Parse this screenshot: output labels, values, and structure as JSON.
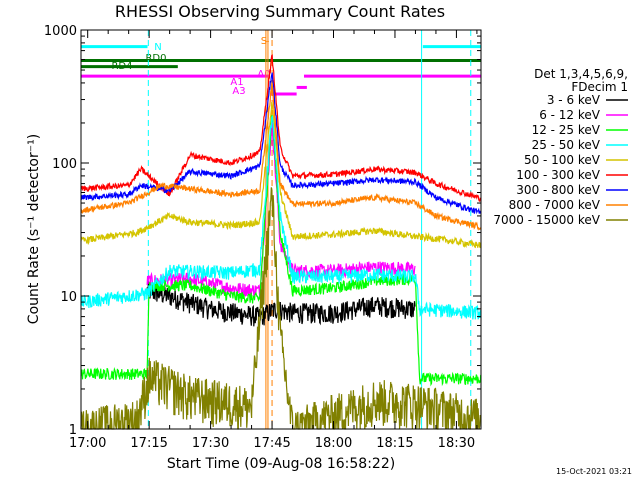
{
  "chart_data": {
    "type": "line",
    "title": "RHESSI Observing Summary Count Rates",
    "xlabel": "Start Time (09-Aug-08 16:58:22)",
    "ylabel": "Count Rate (s⁻¹ detector⁻¹)",
    "x_range": [
      "16:58:22",
      "18:36:00"
    ],
    "x_ticks": [
      "17:00",
      "17:15",
      "17:30",
      "17:45",
      "18:00",
      "18:15",
      "18:30"
    ],
    "yscale": "log",
    "ylim": [
      1,
      1000
    ],
    "y_ticks": [
      "1",
      "10",
      "100",
      "1000"
    ],
    "grid": false,
    "legend_position": "right",
    "legend_header": [
      "Det 1,3,4,5,6,9,",
      "FDecim 1"
    ],
    "timestamp": "15-Oct-2021 03:21",
    "event_markers": [
      {
        "label": "S",
        "time": "17:43.5",
        "color": "#ff8000",
        "style": "solid"
      },
      {
        "label": "",
        "time": "17:45.0",
        "color": "#ff8000",
        "style": "dashed"
      },
      {
        "label": "",
        "time": "17:44.0",
        "color": "#ff8000",
        "style": "solid"
      }
    ],
    "saa_markers": [
      {
        "time": "17:14.8",
        "style": "dashed"
      },
      {
        "time": "18:21.5",
        "style": "solid"
      },
      {
        "time": "18:33.5",
        "style": "dashed"
      }
    ],
    "flag_bars": [
      {
        "label": "N",
        "color": "#00ffff",
        "y_level": 750,
        "segments": [
          [
            "16:58:22",
            "17:14.6"
          ],
          [
            "18:21.8",
            "18:36"
          ]
        ]
      },
      {
        "label": "RD0",
        "color": "#007000",
        "y_level": 590,
        "segments": [
          [
            "16:58:22",
            "18:36"
          ]
        ]
      },
      {
        "label": "RD4",
        "color": "#007000",
        "y_level": 530,
        "segments": [
          [
            "16:58:22",
            "17:22.0"
          ]
        ]
      },
      {
        "label": "A0",
        "color": "#ff00ff",
        "y_level": 450,
        "segments": [
          [
            "16:58:22",
            "17:44.5"
          ],
          [
            "17:52.8",
            "18:36"
          ]
        ]
      },
      {
        "label": "A1",
        "color": "#ff00ff",
        "y_level": 370,
        "segments": [
          [
            "17:51.0",
            "17:53.5"
          ]
        ]
      },
      {
        "label": "A3",
        "color": "#ff00ff",
        "y_level": 330,
        "segments": [
          [
            "17:44.5",
            "17:51.0"
          ]
        ]
      }
    ],
    "series": [
      {
        "name": "3 - 6 keV",
        "color": "#000000",
        "points": [
          [
            "17:14.5",
            11
          ],
          [
            "17:20",
            10
          ],
          [
            "17:30",
            8
          ],
          [
            "17:38",
            7.3
          ],
          [
            "17:42",
            7
          ],
          [
            "17:46",
            8
          ],
          [
            "17:50",
            7.5
          ],
          [
            "18:00",
            7.5
          ],
          [
            "18:10",
            8.5
          ],
          [
            "18:20",
            8
          ]
        ]
      },
      {
        "name": "6 - 12 keV",
        "color": "#ff00ff",
        "points": [
          [
            "17:14.5",
            13
          ],
          [
            "17:25",
            13.5
          ],
          [
            "17:35",
            11.5
          ],
          [
            "17:42",
            11
          ],
          [
            "17:45",
            200
          ],
          [
            "17:47",
            25
          ],
          [
            "17:50",
            15.5
          ],
          [
            "18:00",
            15.5
          ],
          [
            "18:10",
            16.5
          ],
          [
            "18:20",
            16
          ]
        ]
      },
      {
        "name": "12 - 25 keV",
        "color": "#00ff00",
        "points": [
          [
            "16:58:22",
            2.6
          ],
          [
            "17:14.5",
            2.6
          ],
          [
            "17:15",
            12
          ],
          [
            "17:25",
            12
          ],
          [
            "17:35",
            10
          ],
          [
            "17:42",
            9.5
          ],
          [
            "17:45",
            250
          ],
          [
            "17:47",
            30
          ],
          [
            "17:50",
            11
          ],
          [
            "18:00",
            11.5
          ],
          [
            "18:10",
            13
          ],
          [
            "18:20",
            13.5
          ],
          [
            "18:21",
            2.4
          ],
          [
            "18:36",
            2.4
          ]
        ]
      },
      {
        "name": "25 - 50 keV",
        "color": "#00ffff",
        "points": [
          [
            "16:58:22",
            9
          ],
          [
            "17:14.5",
            10.5
          ],
          [
            "17:20",
            15.5
          ],
          [
            "17:35",
            15
          ],
          [
            "17:42",
            16
          ],
          [
            "17:45",
            240
          ],
          [
            "17:47",
            40
          ],
          [
            "17:50",
            14
          ],
          [
            "18:00",
            14
          ],
          [
            "18:10",
            14.5
          ],
          [
            "18:20",
            14
          ],
          [
            "18:21",
            8
          ],
          [
            "18:36",
            7.5
          ]
        ]
      },
      {
        "name": "50 - 100 keV",
        "color": "#d4c400",
        "points": [
          [
            "16:58:22",
            26
          ],
          [
            "17:12",
            30
          ],
          [
            "17:20",
            40
          ],
          [
            "17:25",
            36
          ],
          [
            "17:35",
            34
          ],
          [
            "17:42",
            36
          ],
          [
            "17:45",
            300
          ],
          [
            "17:47",
            60
          ],
          [
            "17:50",
            28
          ],
          [
            "18:00",
            29
          ],
          [
            "18:10",
            31
          ],
          [
            "18:20",
            28
          ],
          [
            "18:25",
            27
          ],
          [
            "18:36",
            24
          ]
        ]
      },
      {
        "name": "100 - 300 keV",
        "color": "#ff0000",
        "points": [
          [
            "16:58:22",
            64
          ],
          [
            "17:10",
            68
          ],
          [
            "17:13",
            90
          ],
          [
            "17:20",
            58
          ],
          [
            "17:25",
            115
          ],
          [
            "17:35",
            100
          ],
          [
            "17:42",
            120
          ],
          [
            "17:45",
            650
          ],
          [
            "17:47",
            130
          ],
          [
            "17:50",
            80
          ],
          [
            "18:00",
            82
          ],
          [
            "18:10",
            90
          ],
          [
            "18:20",
            85
          ],
          [
            "18:25",
            70
          ],
          [
            "18:36",
            54
          ]
        ]
      },
      {
        "name": "300 - 800 keV",
        "color": "#0000ff",
        "points": [
          [
            "16:58:22",
            55
          ],
          [
            "17:10",
            58
          ],
          [
            "17:13",
            68
          ],
          [
            "17:20",
            62
          ],
          [
            "17:25",
            86
          ],
          [
            "17:35",
            80
          ],
          [
            "17:42",
            95
          ],
          [
            "17:45",
            500
          ],
          [
            "17:47",
            95
          ],
          [
            "17:50",
            68
          ],
          [
            "18:00",
            70
          ],
          [
            "18:10",
            75
          ],
          [
            "18:20",
            72
          ],
          [
            "18:25",
            55
          ],
          [
            "18:36",
            42
          ]
        ]
      },
      {
        "name": "800 - 7000 keV",
        "color": "#ff8000",
        "points": [
          [
            "16:58:22",
            44
          ],
          [
            "17:10",
            50
          ],
          [
            "17:18",
            68
          ],
          [
            "17:25",
            64
          ],
          [
            "17:35",
            58
          ],
          [
            "17:42",
            62
          ],
          [
            "17:45",
            400
          ],
          [
            "17:47",
            70
          ],
          [
            "17:50",
            49
          ],
          [
            "18:00",
            50
          ],
          [
            "18:10",
            55
          ],
          [
            "18:20",
            50
          ],
          [
            "18:25",
            40
          ],
          [
            "18:36",
            33
          ]
        ]
      },
      {
        "name": "7000 - 15000 keV",
        "color": "#808000",
        "points": [
          [
            "16:58:22",
            1
          ],
          [
            "17:12",
            1.2
          ],
          [
            "17:15",
            2.5
          ],
          [
            "17:25",
            1.8
          ],
          [
            "17:40",
            1.5
          ],
          [
            "17:45",
            60
          ],
          [
            "17:47",
            5
          ],
          [
            "17:50",
            1
          ],
          [
            "18:00",
            1.3
          ],
          [
            "18:10",
            1.7
          ],
          [
            "18:20",
            1.6
          ],
          [
            "18:36",
            1.2
          ]
        ]
      }
    ]
  }
}
